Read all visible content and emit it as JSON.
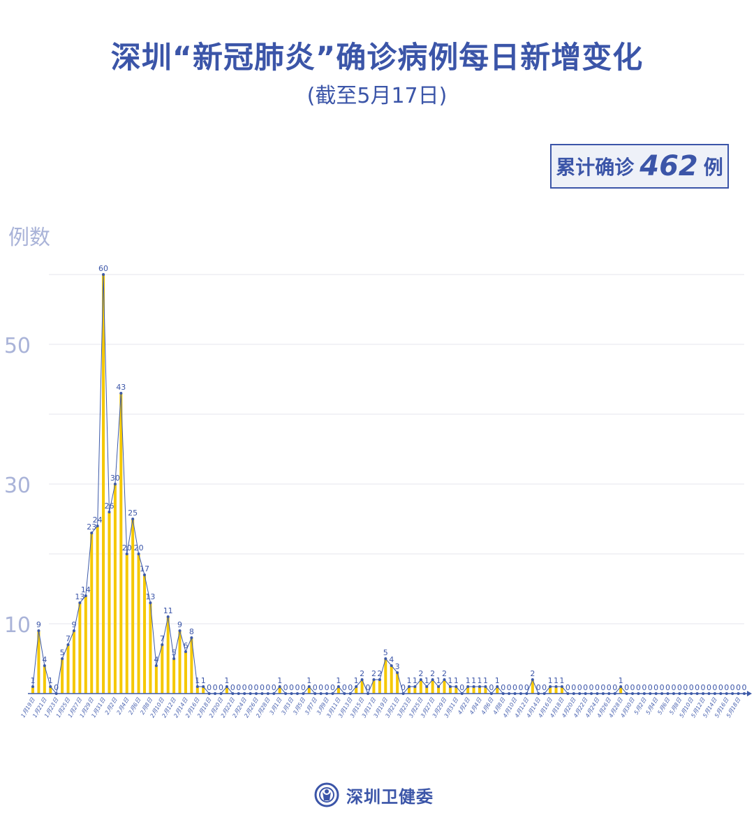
{
  "chart_data": {
    "type": "bar",
    "title": "深圳“新冠肺炎”确诊病例每日新增变化",
    "subtitle": "(截至5月17日)",
    "ylabel": "例数",
    "ylim": [
      0,
      60
    ],
    "yticks": [
      10,
      30,
      50
    ],
    "grid": true,
    "start_date": "2020-01-19",
    "end_date": "2020-05-17",
    "values": [
      1,
      9,
      4,
      1,
      0,
      5,
      7,
      9,
      13,
      14,
      23,
      24,
      60,
      26,
      30,
      43,
      20,
      25,
      20,
      17,
      13,
      4,
      7,
      11,
      5,
      9,
      6,
      8,
      1,
      1,
      0,
      0,
      0,
      1,
      0,
      0,
      0,
      0,
      0,
      0,
      0,
      0,
      1,
      0,
      0,
      0,
      0,
      1,
      0,
      0,
      0,
      0,
      1,
      0,
      0,
      1,
      2,
      0,
      2,
      2,
      5,
      4,
      3,
      0,
      1,
      1,
      2,
      1,
      2,
      1,
      2,
      1,
      1,
      0,
      1,
      1,
      1,
      1,
      0,
      1,
      0,
      0,
      0,
      0,
      0,
      2,
      0,
      0,
      1,
      1,
      1,
      0,
      0,
      0,
      0,
      0,
      0,
      0,
      0,
      0,
      1,
      0,
      0,
      0,
      0,
      0,
      0,
      0,
      0,
      0,
      0,
      0,
      0,
      0,
      0,
      0,
      0,
      0,
      0,
      0,
      0,
      0
    ],
    "colors": {
      "bar": "#f5c800",
      "line": "#3d5aa8",
      "label": "#3b55a8",
      "grid": "#e4e6ec",
      "axis_text": "#a9b3d8"
    }
  },
  "total": {
    "prefix": "累计确诊",
    "value": "462",
    "suffix": "例"
  },
  "footer": {
    "org": "深圳卫健委",
    "logo_icon": "shenzhen-health-commission-logo"
  }
}
